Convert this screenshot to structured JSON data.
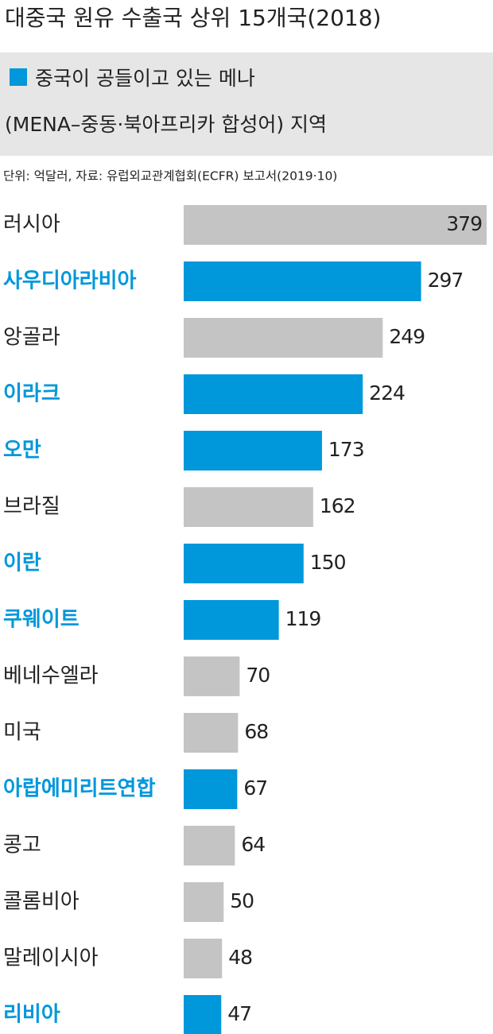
{
  "chart_data": {
    "type": "bar",
    "orientation": "horizontal",
    "title": "대중국 원유 수출국 상위 15개국(2018)",
    "legend": {
      "label": [
        "중국이 공들이고 있는 메나",
        "(MENA–중동·북아프리카 합성어) 지역"
      ],
      "color": "#0097db"
    },
    "note": "단위: 억달러, 자료: 유럽외교관계협회(ECFR) 보고서(2019·10)",
    "categories": [
      "러시아",
      "사우디아라비아",
      "앙골라",
      "이라크",
      "오만",
      "브라질",
      "이란",
      "쿠웨이트",
      "베네수엘라",
      "미국",
      "아랍에미리트연합",
      "콩고",
      "콜롬비아",
      "말레이시아",
      "리비아"
    ],
    "values": [
      379,
      297,
      249,
      224,
      173,
      162,
      150,
      119,
      70,
      68,
      67,
      64,
      50,
      48,
      47
    ],
    "colors": [
      "#c4c4c4",
      "#0097db",
      "#c4c4c4",
      "#0097db",
      "#0097db",
      "#c4c4c4",
      "#0097db",
      "#0097db",
      "#c4c4c4",
      "#c4c4c4",
      "#0097db",
      "#c4c4c4",
      "#c4c4c4",
      "#c4c4c4",
      "#0097db"
    ]
  }
}
